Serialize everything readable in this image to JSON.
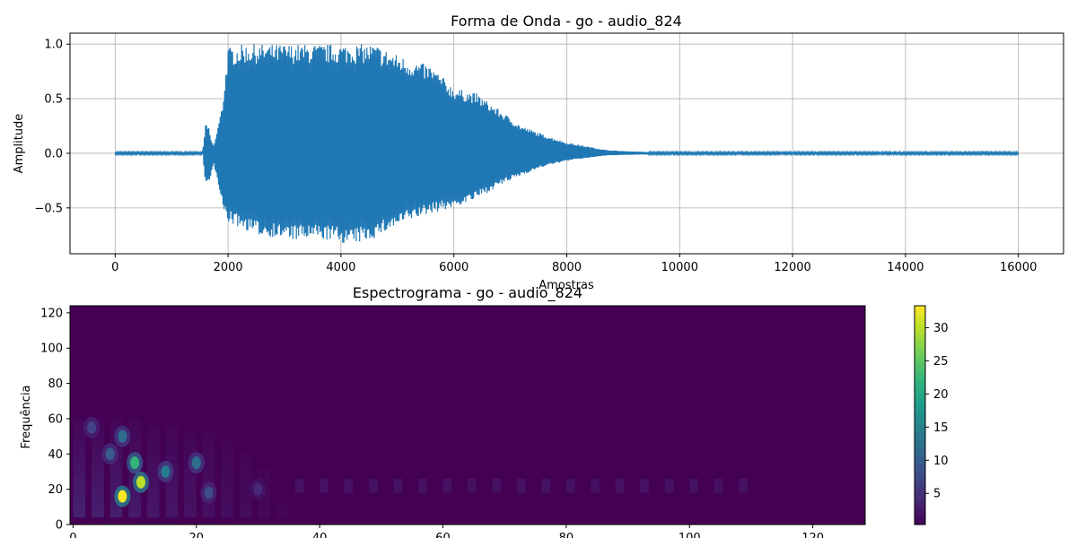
{
  "chart_data": [
    {
      "type": "line",
      "title": "Forma de Onda - go - audio_824",
      "xlabel": "Amostras",
      "ylabel": "Amplitude",
      "xlim": [
        -800,
        16800
      ],
      "ylim": [
        -0.92,
        1.1
      ],
      "grid": true,
      "xticks": [
        0,
        2000,
        4000,
        6000,
        8000,
        10000,
        12000,
        14000,
        16000
      ],
      "yticks": [
        -0.5,
        0.0,
        0.5,
        1.0
      ],
      "xtick_labels": [
        "0",
        "2000",
        "4000",
        "6000",
        "8000",
        "10000",
        "12000",
        "14000",
        "16000"
      ],
      "ytick_labels": [
        "−0.5",
        "0.0",
        "0.5",
        "1.0"
      ],
      "series": [
        {
          "color": "#1f77b4",
          "num_samples": 16000,
          "envelope": {
            "x": [
              0,
              1550,
              1600,
              1650,
              1700,
              1750,
              1900,
              2000,
              2100,
              2300,
              2500,
              2800,
              3200,
              3500,
              3800,
              4200,
              4600,
              4800,
              5200,
              5600,
              6000,
              6400,
              6800,
              7200,
              7600,
              8000,
              8400,
              8700,
              9000,
              9500,
              16000
            ],
            "max": [
              0.01,
              0.01,
              0.27,
              0.26,
              0.12,
              0.07,
              0.45,
              0.97,
              0.98,
              1.0,
              1.0,
              1.0,
              1.0,
              1.0,
              1.0,
              1.0,
              1.0,
              0.95,
              0.86,
              0.8,
              0.6,
              0.55,
              0.4,
              0.25,
              0.17,
              0.1,
              0.06,
              0.03,
              0.02,
              0.01,
              0.01
            ],
            "min": [
              -0.01,
              -0.01,
              -0.29,
              -0.27,
              -0.2,
              -0.1,
              -0.5,
              -0.63,
              -0.66,
              -0.7,
              -0.75,
              -0.77,
              -0.8,
              -0.79,
              -0.8,
              -0.84,
              -0.78,
              -0.72,
              -0.62,
              -0.55,
              -0.5,
              -0.42,
              -0.3,
              -0.2,
              -0.12,
              -0.07,
              -0.04,
              -0.02,
              -0.015,
              -0.01,
              -0.01
            ]
          }
        }
      ]
    },
    {
      "type": "heatmap",
      "title": "Espectrograma - go - audio_824",
      "xlabel": "",
      "ylabel": "Frequência",
      "xlim": [
        -0.5,
        128.5
      ],
      "ylim": [
        0,
        124
      ],
      "grid": false,
      "colormap": "viridis",
      "xticks": [
        0,
        20,
        40,
        60,
        80,
        100,
        120
      ],
      "yticks": [
        0,
        20,
        40,
        60,
        80,
        100,
        120
      ],
      "xtick_labels": [
        "0",
        "20",
        "40",
        "60",
        "80",
        "100",
        "120"
      ],
      "ytick_labels": [
        "0",
        "20",
        "40",
        "60",
        "80",
        "100",
        "120"
      ],
      "colorbar": {
        "range": [
          0.3,
          33.3
        ],
        "ticks": [
          5,
          10,
          15,
          20,
          25,
          30
        ],
        "tick_labels": [
          "5",
          "10",
          "15",
          "20",
          "25",
          "30"
        ]
      },
      "hotspots": [
        {
          "t": 8,
          "f": 16,
          "value": 33
        },
        {
          "t": 11,
          "f": 24,
          "value": 30
        },
        {
          "t": 10,
          "f": 35,
          "value": 22
        },
        {
          "t": 8,
          "f": 50,
          "value": 12
        },
        {
          "t": 15,
          "f": 30,
          "value": 14
        },
        {
          "t": 20,
          "f": 35,
          "value": 12
        },
        {
          "t": 6,
          "f": 40,
          "value": 10
        },
        {
          "t": 3,
          "f": 55,
          "value": 7
        },
        {
          "t": 22,
          "f": 18,
          "value": 8
        },
        {
          "t": 30,
          "f": 20,
          "value": 4
        }
      ]
    }
  ]
}
